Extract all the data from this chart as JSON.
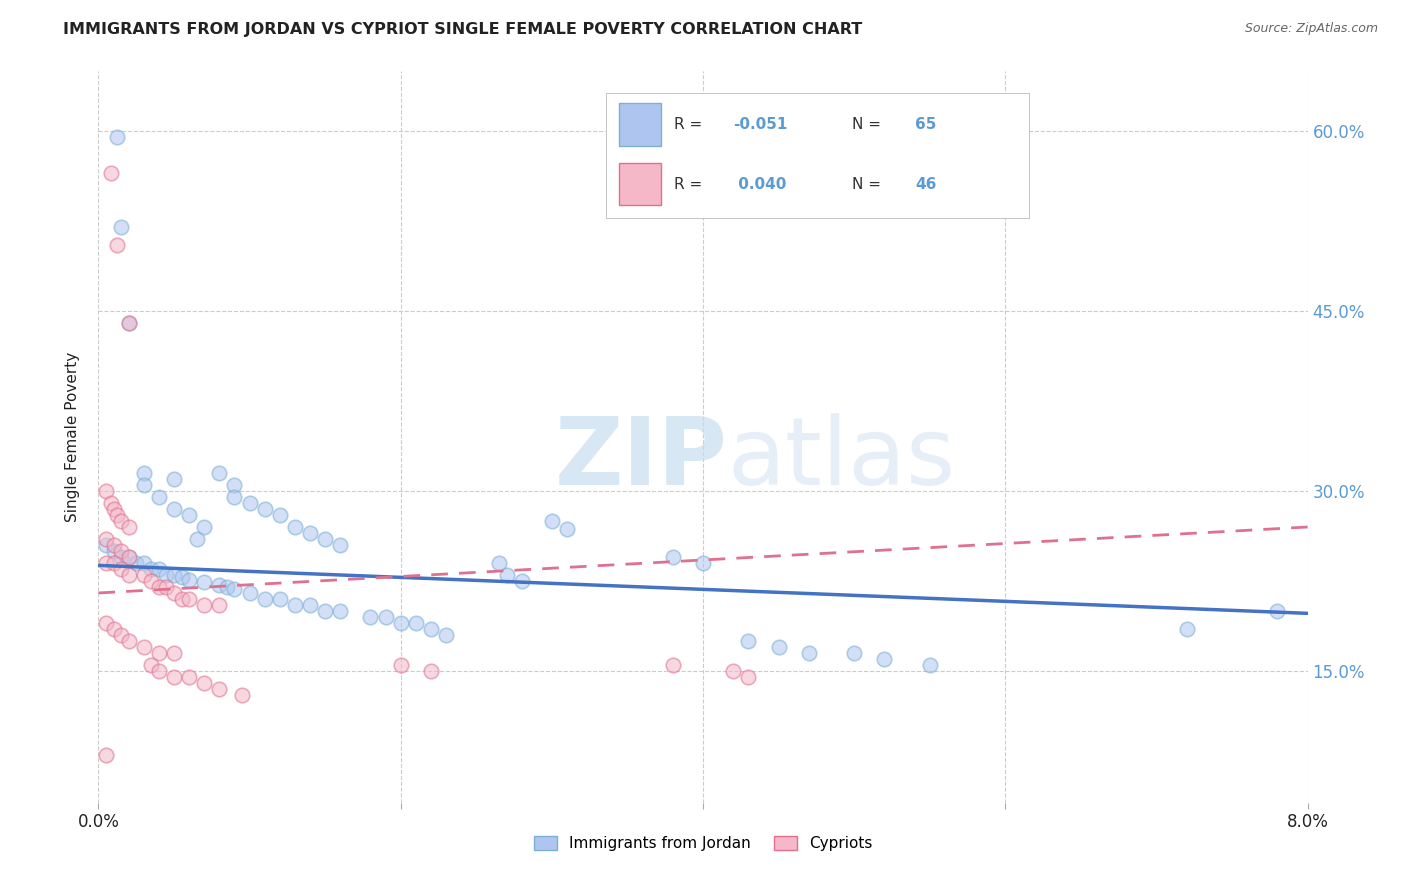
{
  "title": "IMMIGRANTS FROM JORDAN VS CYPRIOT SINGLE FEMALE POVERTY CORRELATION CHART",
  "source": "Source: ZipAtlas.com",
  "ylabel": "Single Female Poverty",
  "jordan_color": "#7bafd4",
  "jordan_fill": "#aec6ef",
  "cypriot_color": "#e07090",
  "cypriot_fill": "#f4b8c8",
  "jordan_scatter": [
    [
      0.0012,
      0.595
    ],
    [
      0.0015,
      0.52
    ],
    [
      0.002,
      0.44
    ],
    [
      0.003,
      0.315
    ],
    [
      0.003,
      0.305
    ],
    [
      0.004,
      0.295
    ],
    [
      0.005,
      0.31
    ],
    [
      0.005,
      0.285
    ],
    [
      0.006,
      0.28
    ],
    [
      0.007,
      0.27
    ],
    [
      0.0065,
      0.26
    ],
    [
      0.008,
      0.315
    ],
    [
      0.009,
      0.305
    ],
    [
      0.009,
      0.295
    ],
    [
      0.01,
      0.29
    ],
    [
      0.011,
      0.285
    ],
    [
      0.012,
      0.28
    ],
    [
      0.013,
      0.27
    ],
    [
      0.014,
      0.265
    ],
    [
      0.015,
      0.26
    ],
    [
      0.016,
      0.255
    ],
    [
      0.0005,
      0.255
    ],
    [
      0.001,
      0.25
    ],
    [
      0.0015,
      0.245
    ],
    [
      0.002,
      0.245
    ],
    [
      0.0025,
      0.24
    ],
    [
      0.003,
      0.24
    ],
    [
      0.0035,
      0.235
    ],
    [
      0.004,
      0.235
    ],
    [
      0.0045,
      0.23
    ],
    [
      0.005,
      0.23
    ],
    [
      0.0055,
      0.228
    ],
    [
      0.006,
      0.226
    ],
    [
      0.007,
      0.224
    ],
    [
      0.008,
      0.222
    ],
    [
      0.0085,
      0.22
    ],
    [
      0.009,
      0.218
    ],
    [
      0.01,
      0.215
    ],
    [
      0.011,
      0.21
    ],
    [
      0.012,
      0.21
    ],
    [
      0.013,
      0.205
    ],
    [
      0.014,
      0.205
    ],
    [
      0.015,
      0.2
    ],
    [
      0.016,
      0.2
    ],
    [
      0.018,
      0.195
    ],
    [
      0.019,
      0.195
    ],
    [
      0.02,
      0.19
    ],
    [
      0.021,
      0.19
    ],
    [
      0.022,
      0.185
    ],
    [
      0.023,
      0.18
    ],
    [
      0.0265,
      0.24
    ],
    [
      0.027,
      0.23
    ],
    [
      0.028,
      0.225
    ],
    [
      0.03,
      0.275
    ],
    [
      0.031,
      0.268
    ],
    [
      0.038,
      0.245
    ],
    [
      0.04,
      0.24
    ],
    [
      0.043,
      0.175
    ],
    [
      0.045,
      0.17
    ],
    [
      0.047,
      0.165
    ],
    [
      0.05,
      0.165
    ],
    [
      0.052,
      0.16
    ],
    [
      0.055,
      0.155
    ],
    [
      0.072,
      0.185
    ],
    [
      0.078,
      0.2
    ]
  ],
  "cypriot_scatter": [
    [
      0.0008,
      0.565
    ],
    [
      0.0012,
      0.505
    ],
    [
      0.002,
      0.44
    ],
    [
      0.0005,
      0.3
    ],
    [
      0.0008,
      0.29
    ],
    [
      0.001,
      0.285
    ],
    [
      0.0012,
      0.28
    ],
    [
      0.0015,
      0.275
    ],
    [
      0.002,
      0.27
    ],
    [
      0.0005,
      0.26
    ],
    [
      0.001,
      0.255
    ],
    [
      0.0015,
      0.25
    ],
    [
      0.002,
      0.245
    ],
    [
      0.0005,
      0.24
    ],
    [
      0.001,
      0.24
    ],
    [
      0.0015,
      0.235
    ],
    [
      0.002,
      0.23
    ],
    [
      0.003,
      0.23
    ],
    [
      0.0035,
      0.225
    ],
    [
      0.004,
      0.22
    ],
    [
      0.0045,
      0.22
    ],
    [
      0.005,
      0.215
    ],
    [
      0.0055,
      0.21
    ],
    [
      0.006,
      0.21
    ],
    [
      0.007,
      0.205
    ],
    [
      0.008,
      0.205
    ],
    [
      0.0005,
      0.19
    ],
    [
      0.001,
      0.185
    ],
    [
      0.0015,
      0.18
    ],
    [
      0.002,
      0.175
    ],
    [
      0.003,
      0.17
    ],
    [
      0.004,
      0.165
    ],
    [
      0.005,
      0.165
    ],
    [
      0.0035,
      0.155
    ],
    [
      0.004,
      0.15
    ],
    [
      0.005,
      0.145
    ],
    [
      0.006,
      0.145
    ],
    [
      0.007,
      0.14
    ],
    [
      0.008,
      0.135
    ],
    [
      0.0095,
      0.13
    ],
    [
      0.02,
      0.155
    ],
    [
      0.022,
      0.15
    ],
    [
      0.0005,
      0.08
    ],
    [
      0.038,
      0.155
    ],
    [
      0.042,
      0.15
    ],
    [
      0.043,
      0.145
    ]
  ],
  "jordan_trend_x": [
    0.0,
    0.08
  ],
  "jordan_trend_y": [
    0.238,
    0.198
  ],
  "cypriot_trend_x": [
    0.0,
    0.08
  ],
  "cypriot_trend_y": [
    0.215,
    0.27
  ],
  "xmin": 0.0,
  "xmax": 0.08,
  "ymin": 0.04,
  "ymax": 0.65,
  "ytick_vals": [
    0.15,
    0.3,
    0.45,
    0.6
  ],
  "ytick_labels": [
    "15.0%",
    "30.0%",
    "45.0%",
    "60.0%"
  ],
  "xtick_vals": [
    0.0,
    0.02,
    0.04,
    0.06,
    0.08
  ],
  "xtick_show": [
    "0.0%",
    "",
    "",
    "",
    "8.0%"
  ],
  "watermark_zip": "ZIP",
  "watermark_atlas": "atlas",
  "background_color": "#ffffff",
  "grid_color": "#cccccc",
  "scatter_size": 110,
  "scatter_alpha": 0.55,
  "scatter_edgewidth": 1.2,
  "legend_R1": "R = -0.051",
  "legend_N1": "N = 65",
  "legend_R2": "R =  0.040",
  "legend_N2": "N = 46",
  "legend_text_color": "#333333",
  "legend_value_color": "#5b9bd5",
  "title_color": "#222222",
  "source_color": "#666666",
  "yaxis_color": "#5b9bd5"
}
